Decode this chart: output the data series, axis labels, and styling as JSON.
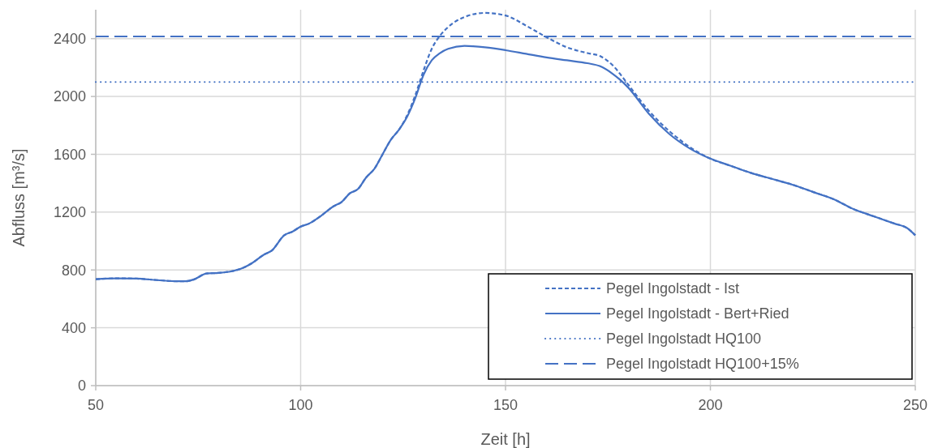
{
  "chart_data": {
    "type": "line",
    "xlabel": "Zeit [h]",
    "ylabel": "Abfluss [m³/s]",
    "xlim": [
      50,
      250
    ],
    "xticks": [
      50,
      100,
      150,
      200,
      250
    ],
    "ylim": [
      0,
      2600
    ],
    "yticks": [
      0,
      400,
      800,
      1200,
      1600,
      2000,
      2400
    ],
    "grid": true,
    "legend": "bottom right",
    "series": [
      {
        "name": "Pegel Ingolstadt - Ist",
        "color": "#4472c4",
        "line_style": "dashed",
        "x": [
          50,
          55,
          60,
          65,
          70,
          72,
          74,
          77,
          80,
          83,
          86,
          88,
          91,
          93,
          96,
          98,
          100,
          102,
          105,
          108,
          110,
          112,
          114,
          116,
          118,
          120,
          122,
          124,
          126,
          128,
          130,
          132,
          134,
          136,
          140,
          145,
          150,
          155,
          160,
          165,
          170,
          173,
          176,
          180,
          185,
          190,
          195,
          200,
          205,
          210,
          215,
          220,
          225,
          230,
          235,
          240,
          245,
          248,
          250
        ],
        "values": [
          736,
          742,
          740,
          730,
          722,
          722,
          735,
          775,
          780,
          790,
          815,
          845,
          905,
          935,
          1040,
          1065,
          1100,
          1120,
          1175,
          1240,
          1270,
          1330,
          1360,
          1440,
          1500,
          1600,
          1700,
          1770,
          1870,
          2010,
          2180,
          2330,
          2420,
          2480,
          2550,
          2578,
          2560,
          2490,
          2410,
          2340,
          2300,
          2280,
          2220,
          2080,
          1900,
          1760,
          1650,
          1570,
          1520,
          1470,
          1430,
          1390,
          1340,
          1290,
          1220,
          1170,
          1120,
          1090,
          1040
        ]
      },
      {
        "name": "Pegel Ingolstadt - Bert+Ried",
        "color": "#4472c4",
        "line_style": "solid",
        "x": [
          50,
          55,
          60,
          65,
          70,
          72,
          74,
          77,
          80,
          83,
          86,
          88,
          91,
          93,
          96,
          98,
          100,
          102,
          105,
          108,
          110,
          112,
          114,
          116,
          118,
          120,
          122,
          124,
          126,
          128,
          130,
          132,
          134,
          136,
          140,
          145,
          150,
          155,
          160,
          165,
          170,
          173,
          176,
          180,
          185,
          190,
          195,
          200,
          205,
          210,
          215,
          220,
          225,
          230,
          235,
          240,
          245,
          248,
          250
        ],
        "values": [
          736,
          742,
          740,
          730,
          722,
          722,
          735,
          775,
          780,
          790,
          815,
          845,
          905,
          935,
          1040,
          1065,
          1100,
          1120,
          1175,
          1240,
          1270,
          1330,
          1360,
          1440,
          1500,
          1600,
          1700,
          1770,
          1860,
          1990,
          2150,
          2250,
          2300,
          2330,
          2350,
          2340,
          2320,
          2295,
          2270,
          2250,
          2230,
          2210,
          2160,
          2060,
          1880,
          1740,
          1640,
          1570,
          1520,
          1470,
          1430,
          1390,
          1340,
          1290,
          1220,
          1170,
          1120,
          1090,
          1040
        ]
      },
      {
        "name": "Pegel Ingolstadt HQ100",
        "color": "#4472c4",
        "line_style": "dotted",
        "x": [
          50,
          250
        ],
        "values": [
          2100,
          2100
        ]
      },
      {
        "name": "Pegel Ingolstadt HQ100+15%",
        "color": "#4472c4",
        "line_style": "dashed",
        "x": [
          50,
          250
        ],
        "values": [
          2415,
          2415
        ]
      }
    ]
  }
}
